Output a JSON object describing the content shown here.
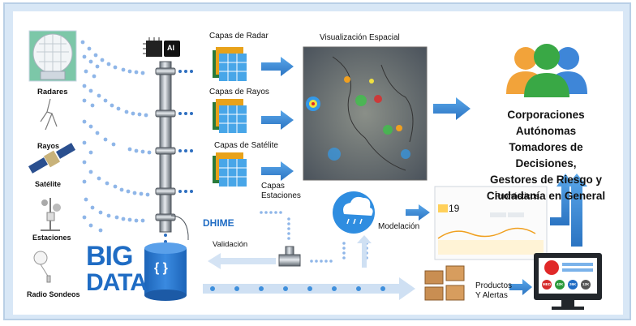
{
  "sources": {
    "radares": "Radares",
    "rayos": "Rayos",
    "satelite": "Satélite",
    "estaciones": "Estaciones",
    "radio_sondeos": "Radio Sondeos"
  },
  "ai_badge": "AI",
  "layers": {
    "radar": "Capas de Radar",
    "rayos": "Capas de Rayos",
    "satelite": "Capas de Satélite",
    "estaciones_line1": "Capas",
    "estaciones_line2": "Estaciones"
  },
  "visualizacion": "Visualización Espacial",
  "dhime": "DHIME",
  "validacion": "Validación",
  "modelacion": "Modelación",
  "pronosticos": "Pronósticos",
  "forecast_temp": "19",
  "productos_line1": "Productos",
  "productos_line2": "Y Alertas",
  "big": "BIG",
  "data": "DATA",
  "db_symbol": "{ }",
  "audience": [
    "Corporaciones Autónomas",
    "Tomadores de Decisiones,",
    "Gestores de Riesgo y",
    "Ciudadanía en General"
  ],
  "monitor_badges": [
    "MED",
    "42K",
    "26K",
    "12K"
  ],
  "colors": {
    "frame": "#d8e7f6",
    "accent_blue": "#3f8fdc",
    "dots": "#8fb6e8",
    "bigdata": "#1f6cc4",
    "alert_red": "#e02828"
  }
}
